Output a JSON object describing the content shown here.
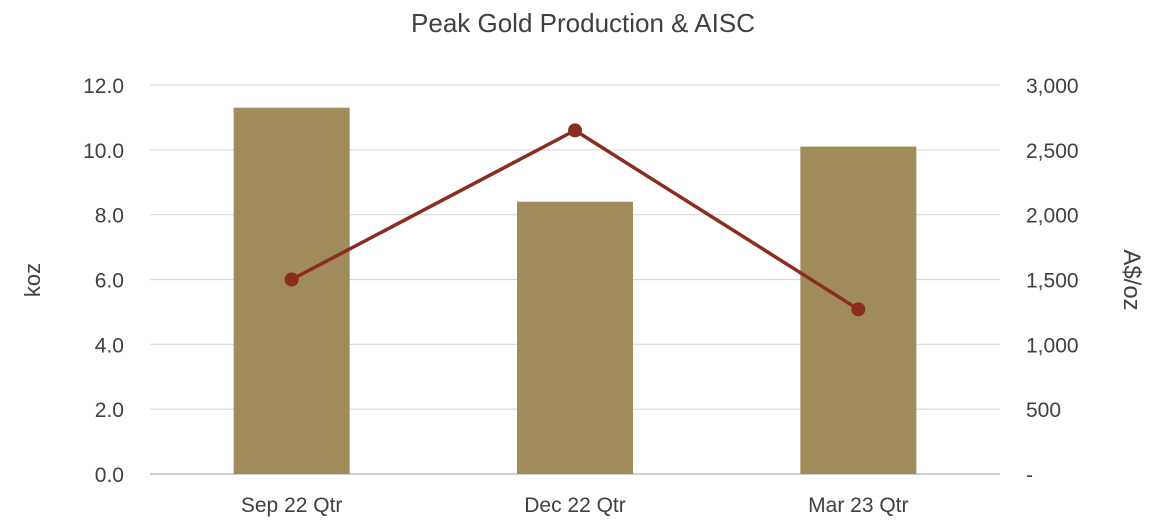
{
  "chart_data": {
    "type": "bar",
    "title": "Peak Gold Production & AISC",
    "categories": [
      "Sep 22 Qtr",
      "Dec 22 Qtr",
      "Mar 23 Qtr"
    ],
    "series": [
      {
        "name": "",
        "type": "bar",
        "axis": "left",
        "values": [
          11.3,
          8.4,
          10.1
        ]
      },
      {
        "name": "",
        "type": "line",
        "axis": "right",
        "values": [
          1500,
          2650,
          1270
        ]
      }
    ],
    "ylabel": "koz",
    "y2label": "A$/oz",
    "ylim": [
      0,
      12
    ],
    "y2lim": [
      0,
      3000
    ],
    "yticks": [
      "0.0",
      "2.0",
      "4.0",
      "6.0",
      "8.0",
      "10.0",
      "12.0"
    ],
    "y2ticks": [
      "-",
      "500",
      "1,000",
      "1,500",
      "2,000",
      "2,500",
      "3,000"
    ],
    "grid": true,
    "bar_color": "#a08c5b",
    "line_color": "#8b2c20"
  }
}
